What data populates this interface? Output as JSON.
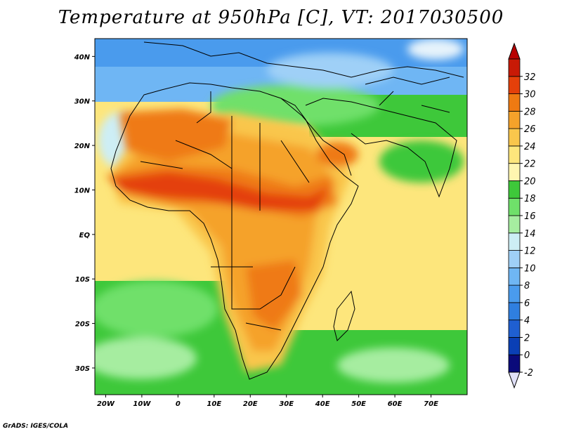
{
  "title": "Temperature at 950hPa [C], VT: 2017030500",
  "credit": "GrADS: IGES/COLA",
  "map": {
    "lon_range": [
      -23,
      80
    ],
    "lat_range": [
      -36,
      44
    ],
    "lon_ticks": [
      {
        "lon": -20,
        "label": "20W"
      },
      {
        "lon": -10,
        "label": "10W"
      },
      {
        "lon": 0,
        "label": "0"
      },
      {
        "lon": 10,
        "label": "10E"
      },
      {
        "lon": 20,
        "label": "20E"
      },
      {
        "lon": 30,
        "label": "30E"
      },
      {
        "lon": 40,
        "label": "40E"
      },
      {
        "lon": 50,
        "label": "50E"
      },
      {
        "lon": 60,
        "label": "60E"
      },
      {
        "lon": 70,
        "label": "70E"
      }
    ],
    "lat_ticks": [
      {
        "lat": 40,
        "label": "40N"
      },
      {
        "lat": 30,
        "label": "30N"
      },
      {
        "lat": 20,
        "label": "20N"
      },
      {
        "lat": 10,
        "label": "10N"
      },
      {
        "lat": 0,
        "label": "EQ"
      },
      {
        "lat": -10,
        "label": "10S"
      },
      {
        "lat": -20,
        "label": "20S"
      },
      {
        "lat": -30,
        "label": "30S"
      }
    ]
  },
  "colorbar": {
    "labels": [
      "-2",
      "0",
      "2",
      "4",
      "6",
      "8",
      "10",
      "12",
      "14",
      "16",
      "18",
      "20",
      "22",
      "24",
      "26",
      "28",
      "30",
      "32"
    ],
    "colors": [
      "#0a0a7a",
      "#0a3fb5",
      "#1f5fd1",
      "#2f7fe0",
      "#4a9bed",
      "#6fb6f4",
      "#9fd0f7",
      "#cdeef5",
      "#a6eda0",
      "#6fe06a",
      "#3ec83a",
      "#fff6b0",
      "#fde67c",
      "#f9c64c",
      "#f5a22a",
      "#ef7a12",
      "#e4400a",
      "#c81a06"
    ],
    "under_color": "#e0e0f8",
    "over_color": "#b80000"
  }
}
